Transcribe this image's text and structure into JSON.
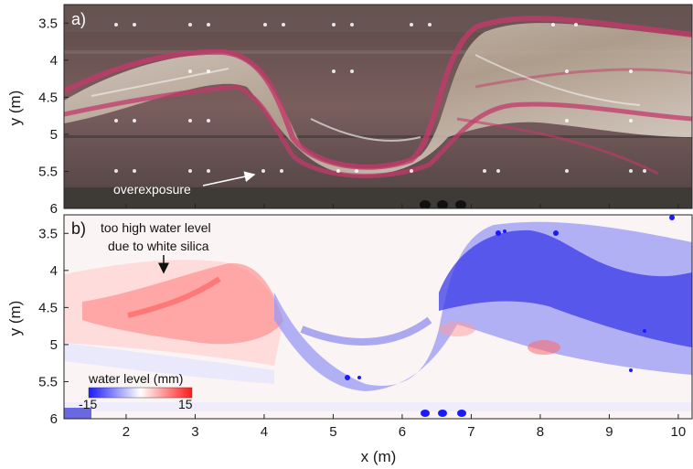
{
  "figure": {
    "panel_a": {
      "letter": "a)",
      "annotation": "overexposure"
    },
    "panel_b": {
      "letter": "b)",
      "annotation_line1": "too high water level",
      "annotation_line2": "due to white silica",
      "colorbar_title": "water level (mm)",
      "colorbar_min": "-15",
      "colorbar_max": "15",
      "colors": {
        "low": "#1a1aff",
        "mid": "#ffffff",
        "high": "#ff1a1a"
      }
    },
    "xlabel": "x (m)",
    "ylabel_a": "y (m)",
    "ylabel_b": "y (m)"
  },
  "chart_data": {
    "type": "heatmap",
    "xlabel": "x (m)",
    "ylabel": "y (m)",
    "xlim": [
      1.1,
      10.2
    ],
    "ylim": [
      6.0,
      3.25
    ],
    "xticks": [
      2,
      3,
      4,
      5,
      6,
      7,
      8,
      9,
      10
    ],
    "xtick_labels": [
      "2",
      "3",
      "4",
      "5",
      "6",
      "7",
      "8",
      "9",
      "10"
    ],
    "yticks": [
      3.5,
      4,
      4.5,
      5,
      5.5,
      6
    ],
    "ytick_labels": [
      "3.5",
      "4",
      "4.5",
      "5",
      "5.5",
      "6"
    ],
    "colorbar": {
      "label": "water level (mm)",
      "range": [
        -15,
        15
      ],
      "colormap": "blue-white-red"
    },
    "panels": [
      "a)",
      "b)"
    ]
  }
}
